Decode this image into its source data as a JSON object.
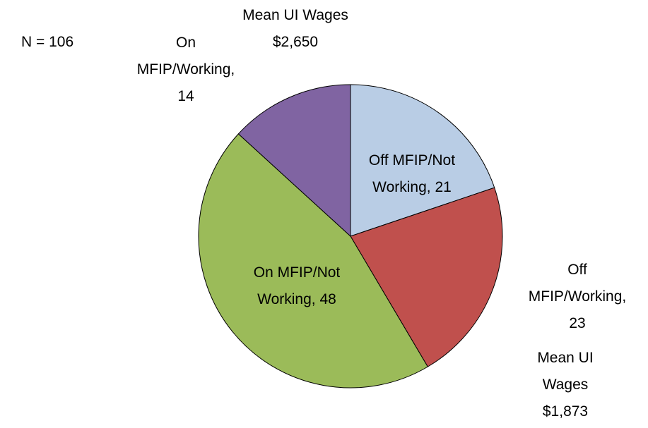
{
  "chart_data": {
    "type": "pie",
    "categories": [
      "Off MFIP/Not Working",
      "Off MFIP/Working",
      "On MFIP/Not Working",
      "On MFIP/Working"
    ],
    "values": [
      21,
      23,
      48,
      14
    ],
    "value_labels": [
      "Off MFIP/Not Working, 21",
      "Off MFIP/Working, 23",
      "On MFIP/Not Working, 48",
      "On MFIP/Working, 14"
    ],
    "colors": [
      "#b9cde5",
      "#c0504d",
      "#9bbb59",
      "#8064a2"
    ],
    "annotations": [
      "N = 106",
      "Mean UI Wages $2,650",
      "Mean UI Wages $1,873"
    ]
  }
}
